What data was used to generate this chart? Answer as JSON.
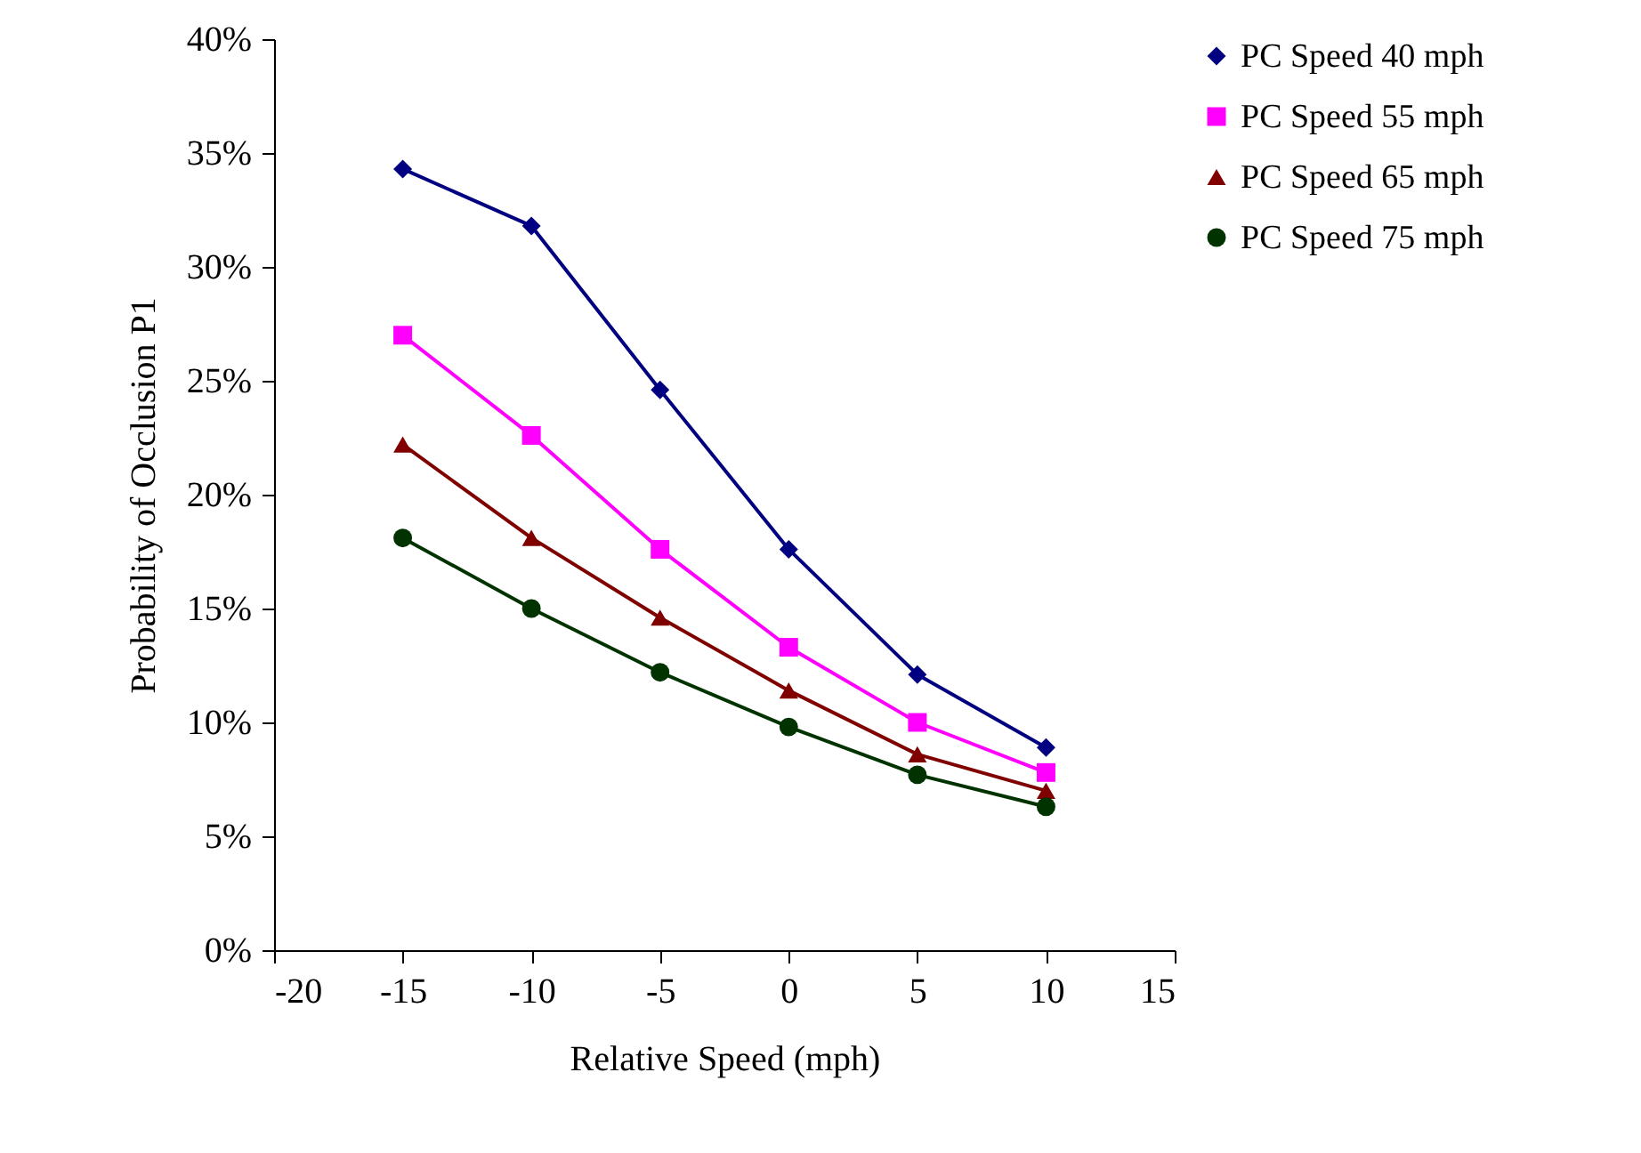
{
  "chart_data": {
    "type": "line",
    "xlabel": "Relative Speed (mph)",
    "ylabel": "Probability of Occlusion P1",
    "x": [
      -15,
      -10,
      -5,
      0,
      5,
      10
    ],
    "series": [
      {
        "name": "PC Speed 40 mph",
        "color": "#000080",
        "marker": "diamond",
        "values": [
          34.3,
          31.8,
          24.6,
          17.6,
          12.1,
          8.9
        ]
      },
      {
        "name": "PC Speed 55 mph",
        "color": "#ff00ff",
        "marker": "square",
        "values": [
          27.0,
          22.6,
          17.6,
          13.3,
          10.0,
          7.8
        ]
      },
      {
        "name": "PC Speed 65 mph",
        "color": "#800000",
        "marker": "triangle",
        "values": [
          22.2,
          18.1,
          14.6,
          11.4,
          8.6,
          7.0
        ]
      },
      {
        "name": "PC Speed 75 mph",
        "color": "#003300",
        "marker": "circle",
        "values": [
          18.1,
          15.0,
          12.2,
          9.8,
          7.7,
          6.3
        ]
      }
    ],
    "xlim": [
      -20,
      15
    ],
    "xticks": [
      -20,
      -15,
      -10,
      -5,
      0,
      5,
      10,
      15
    ],
    "ylim": [
      0,
      40
    ],
    "yticks": [
      {
        "value": 0,
        "label": "0%"
      },
      {
        "value": 5,
        "label": "5%"
      },
      {
        "value": 10,
        "label": "10%"
      },
      {
        "value": 15,
        "label": "15%"
      },
      {
        "value": 20,
        "label": "20%"
      },
      {
        "value": 25,
        "label": "25%"
      },
      {
        "value": 30,
        "label": "30%"
      },
      {
        "value": 35,
        "label": "35%"
      },
      {
        "value": 40,
        "label": "40%"
      }
    ],
    "grid": false,
    "legend": "right",
    "line_style": "solid"
  }
}
